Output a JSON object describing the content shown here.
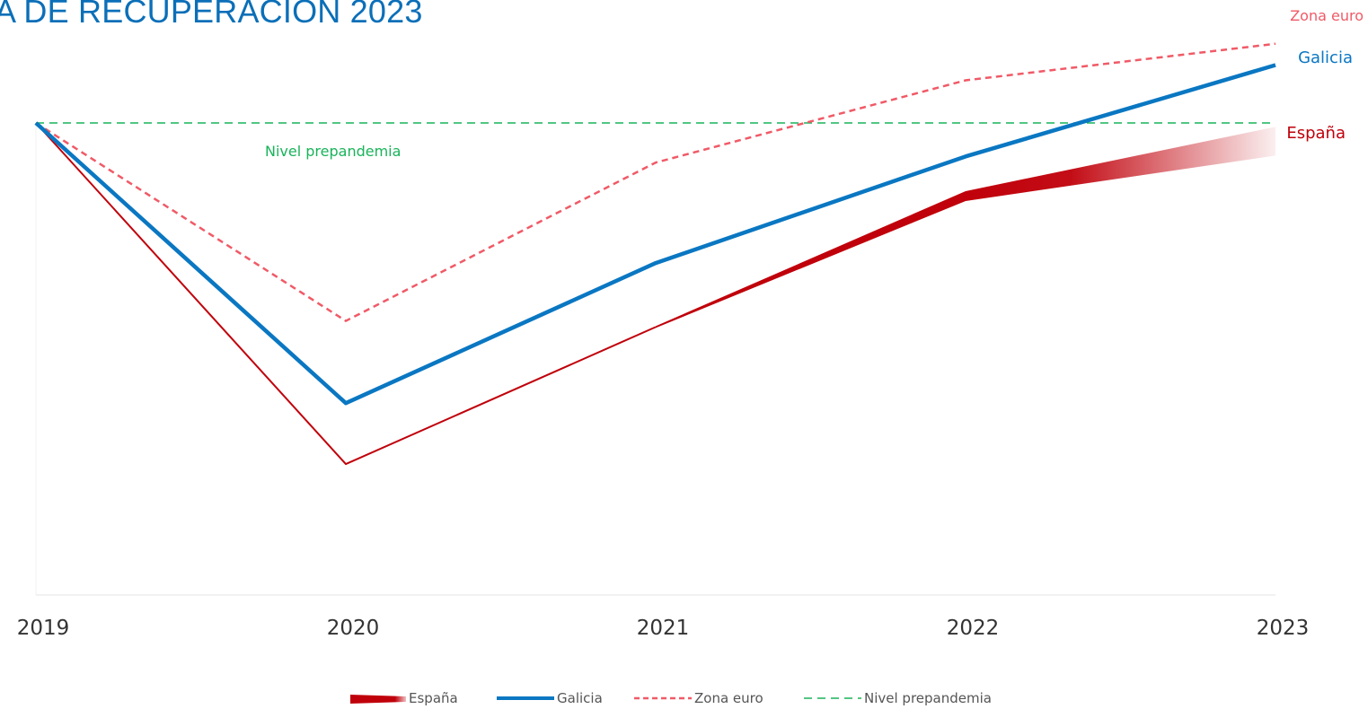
{
  "chart_data": {
    "type": "line",
    "title": "A DE RECUPERACIÓN 2023",
    "categories": [
      "2019",
      "2020",
      "2021",
      "2022",
      "2023"
    ],
    "series": [
      {
        "name": "Zona euro",
        "values": [
          100,
          93.5,
          98.7,
          101.4,
          102.6
        ],
        "color": "#f05a67",
        "style": "dashed"
      },
      {
        "name": "Galicia",
        "values": [
          100,
          90.8,
          95.4,
          98.9,
          101.9
        ],
        "color": "#0a77c2",
        "style": "solid"
      },
      {
        "name": "España",
        "values": [
          100,
          88.8,
          93.3,
          97.6,
          99.4
        ],
        "color": "#c0000a",
        "style": "gradient"
      }
    ],
    "reference": {
      "name": "Nivel prepandemia",
      "value": 100,
      "color": "#19b35a",
      "label": "Nivel prepandemia"
    },
    "ylim": [
      84.5,
      104
    ],
    "end_labels": {
      "zona_euro": "Zona euro",
      "galicia": "Galicia",
      "espana": "España"
    },
    "legend": [
      "España",
      "Galicia",
      "Zona euro",
      "Nivel prepandemia"
    ],
    "legend_position": "bottom",
    "grid": false
  }
}
